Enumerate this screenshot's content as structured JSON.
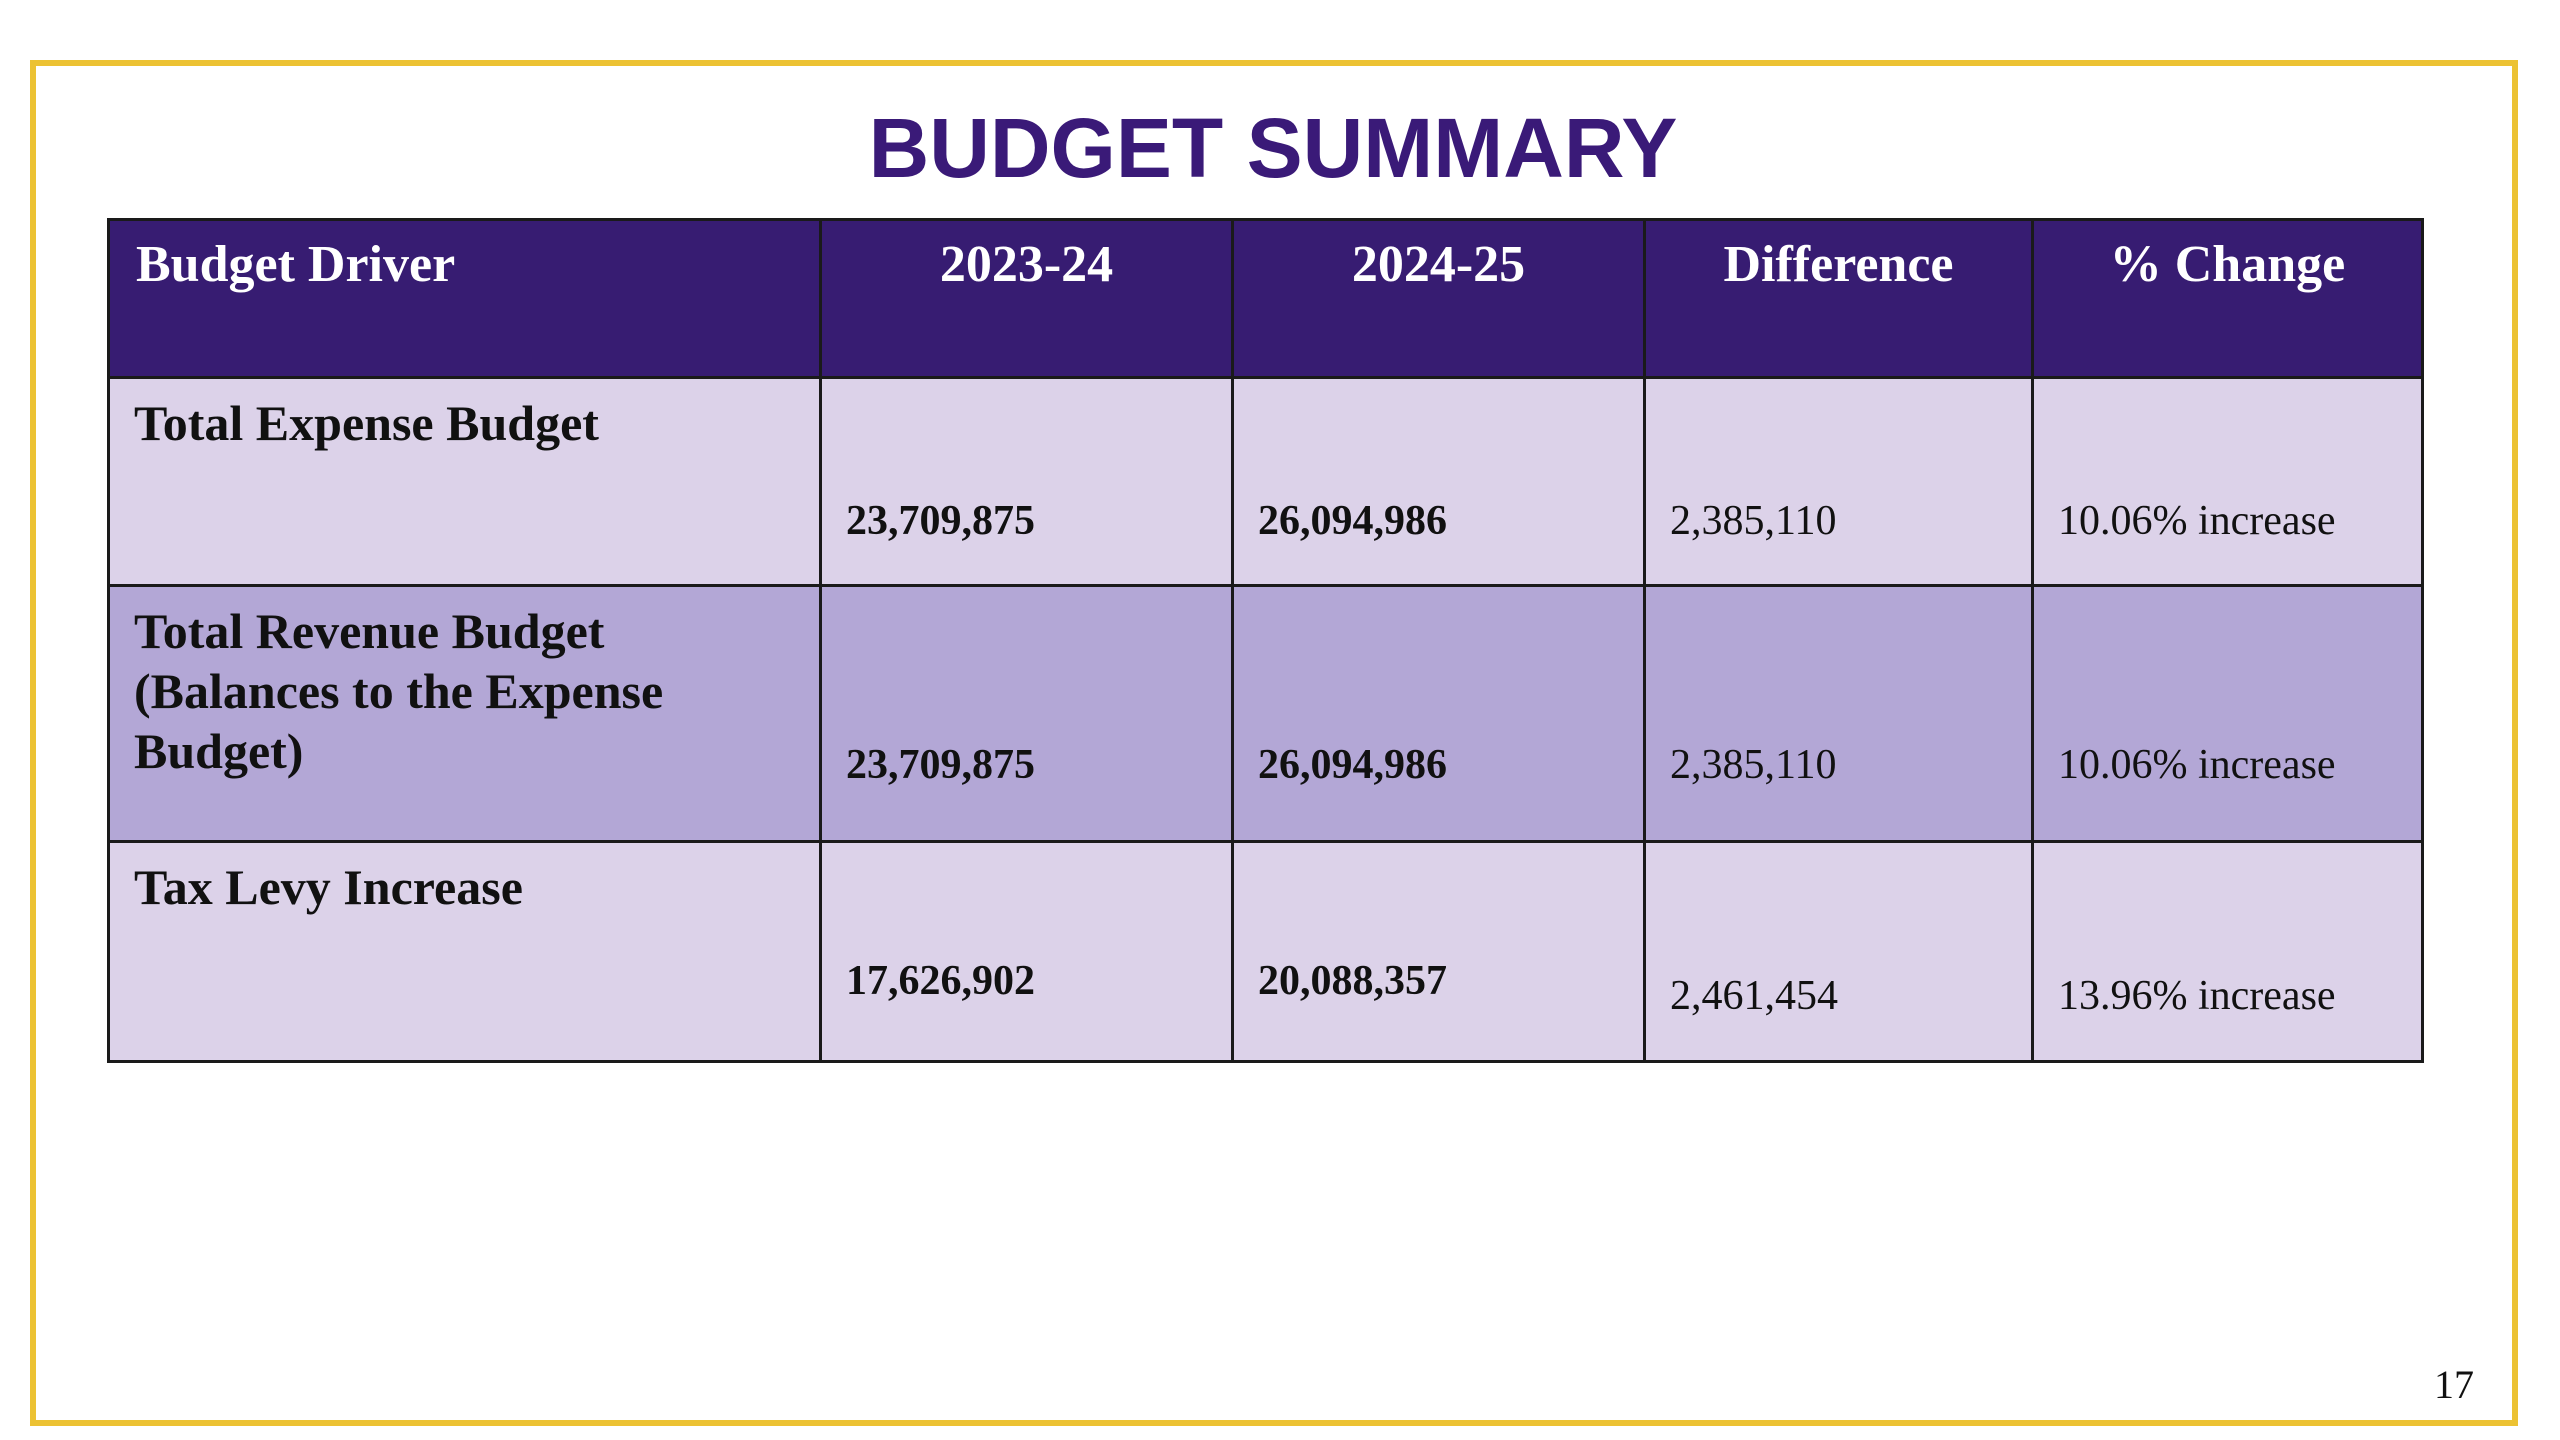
{
  "slide": {
    "title": "BUDGET SUMMARY",
    "page_number": "17"
  },
  "table": {
    "headers": [
      "Budget Driver",
      "2023-24",
      "2024-25",
      "Difference",
      "% Change"
    ],
    "rows": [
      {
        "driver": "Total Expense Budget",
        "y2023_24": "23,709,875",
        "y2024_25": "26,094,986",
        "difference": "2,385,110",
        "pct_change": "10.06% increase"
      },
      {
        "driver": "Total Revenue Budget (Balances to the Expense Budget)",
        "y2023_24": "23,709,875",
        "y2024_25": "26,094,986",
        "difference": "2,385,110",
        "pct_change": "10.06% increase"
      },
      {
        "driver": "Tax Levy Increase",
        "y2023_24": "17,626,902",
        "y2024_25": "20,088,357",
        "difference": "2,461,454",
        "pct_change": "13.96% increase"
      }
    ]
  },
  "colors": {
    "title": "#3a1a78",
    "header_bg": "#371c72",
    "row_light": "#dcd2e9",
    "row_mid": "#b3a7d6",
    "frame_border": "#ecc233"
  }
}
